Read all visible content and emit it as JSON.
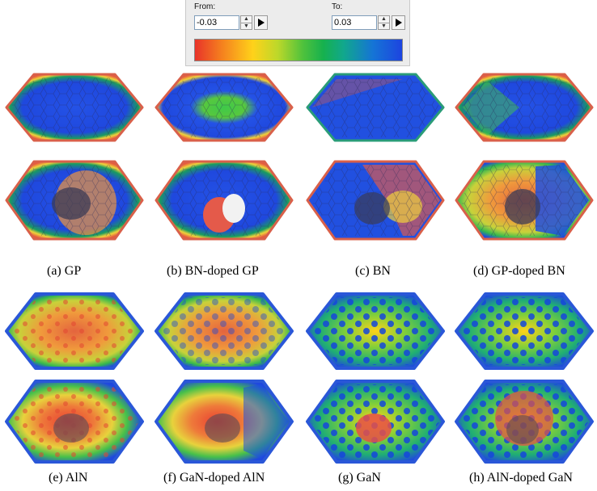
{
  "color_range": {
    "from_label": "From:",
    "from_value": "-0.03",
    "to_label": "To:",
    "to_value": "0.03"
  },
  "panels": [
    {
      "caption": "(a) GP"
    },
    {
      "caption": "(b) BN-doped GP"
    },
    {
      "caption": "(c) BN"
    },
    {
      "caption": "(d) GP-doped BN"
    },
    {
      "caption": "(e) AlN"
    },
    {
      "caption": "(f) GaN-doped AlN"
    },
    {
      "caption": "(g) GaN"
    },
    {
      "caption": "(h) AlN-doped GaN"
    }
  ],
  "colors": {
    "red": "#e8332a",
    "orange": "#f47b1f",
    "yellow": "#ffd21a",
    "green": "#16b14e",
    "blue": "#1d44e0"
  }
}
